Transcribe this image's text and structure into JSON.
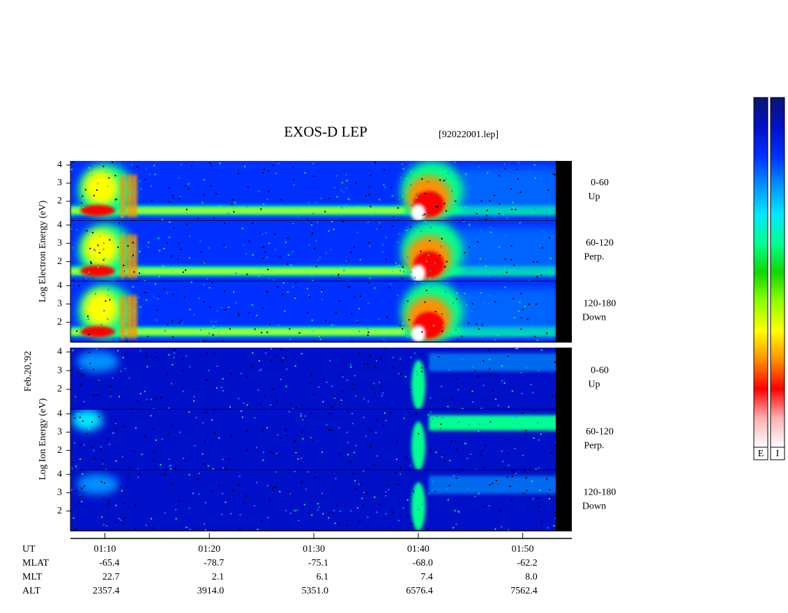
{
  "chart_data": {
    "type": "spectrogram",
    "title": "EXOS-D LEP",
    "subtitle": "[92022001.lep]",
    "date_label": "Feb.20,'92",
    "ylim": [
      0.92,
      4.23
    ],
    "yticks": [
      2,
      3,
      4
    ],
    "xlim": [
      6.7,
      54.7
    ],
    "xticks": [
      {
        "value": 10,
        "label": "01:10"
      },
      {
        "value": 20,
        "label": "01:20"
      },
      {
        "value": 30,
        "label": "01:30"
      },
      {
        "value": 40,
        "label": "01:40"
      },
      {
        "value": 50,
        "label": "01:50"
      }
    ],
    "x_row_label": "UT",
    "ephemeris": [
      {
        "name": "MLAT",
        "values": [
          "-65.4",
          "-78.7",
          "-75.1",
          "-68.0",
          "-62.2"
        ]
      },
      {
        "name": "MLT",
        "values": [
          "22.7",
          "2.1",
          "6.1",
          "7.4",
          "8.0"
        ]
      },
      {
        "name": "ALT",
        "values": [
          "2357.4",
          "3914.0",
          "5351.0",
          "6576.4",
          "7562.4"
        ]
      }
    ],
    "groups": [
      {
        "ylabel": "Log Electron Energy (eV)",
        "panels": [
          {
            "label": "0-60",
            "sublabel": "Up"
          },
          {
            "label": "60-120",
            "sublabel": "Perp."
          },
          {
            "label": "120-180",
            "sublabel": "Down"
          }
        ]
      },
      {
        "ylabel": "Log Ion Energy (eV)",
        "panels": [
          {
            "label": "0-60",
            "sublabel": "Up"
          },
          {
            "label": "60-120",
            "sublabel": "Perp."
          },
          {
            "label": "120-180",
            "sublabel": "Down"
          }
        ]
      }
    ],
    "colorbars": [
      "E",
      "I"
    ],
    "colorscale": [
      "#0a1670",
      "#0010c8",
      "#0030ff",
      "#0090ff",
      "#00e8ff",
      "#00ff90",
      "#10d800",
      "#90ff00",
      "#ffff00",
      "#ff9000",
      "#ff0000",
      "#ffb0b0",
      "#ffffff"
    ]
  }
}
